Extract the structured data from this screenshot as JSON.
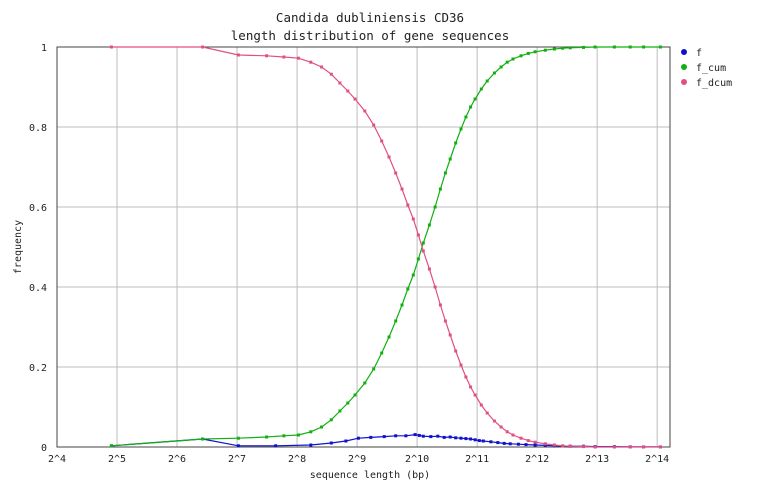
{
  "chart_data": {
    "type": "line",
    "title": "Candida dubliniensis CD36",
    "subtitle": "length distribution of gene sequences",
    "xlabel": "sequence length (bp)",
    "ylabel": "frequency",
    "x_scale": "log2",
    "xlim": [
      16,
      19000
    ],
    "ylim": [
      0,
      1
    ],
    "x_ticks": [
      {
        "value": 16,
        "label": "2^4"
      },
      {
        "value": 32,
        "label": "2^5"
      },
      {
        "value": 64,
        "label": "2^6"
      },
      {
        "value": 128,
        "label": "2^7"
      },
      {
        "value": 256,
        "label": "2^8"
      },
      {
        "value": 512,
        "label": "2^9"
      },
      {
        "value": 1024,
        "label": "2^10"
      },
      {
        "value": 2048,
        "label": "2^11"
      },
      {
        "value": 4096,
        "label": "2^12"
      },
      {
        "value": 8192,
        "label": "2^13"
      },
      {
        "value": 16384,
        "label": "2^14"
      }
    ],
    "y_ticks": [
      {
        "value": 0,
        "label": "0"
      },
      {
        "value": 0.2,
        "label": "0.2"
      },
      {
        "value": 0.4,
        "label": "0.4"
      },
      {
        "value": 0.6,
        "label": "0.6"
      },
      {
        "value": 0.8,
        "label": "0.8"
      },
      {
        "value": 1,
        "label": "1"
      }
    ],
    "grid": true,
    "legend_position": "right",
    "series": [
      {
        "name": "f",
        "color": "#1010d0",
        "x": [
          30,
          86,
          130,
          200,
          300,
          380,
          450,
          520,
          600,
          700,
          800,
          900,
          1000,
          1050,
          1100,
          1200,
          1300,
          1400,
          1500,
          1600,
          1700,
          1800,
          1900,
          2000,
          2100,
          2200,
          2400,
          2600,
          2800,
          3000,
          3300,
          3600,
          4000,
          4500,
          5000,
          6000,
          7000,
          8000,
          10000,
          12000,
          14000,
          17000
        ],
        "values": [
          0.003,
          0.02,
          0.003,
          0.003,
          0.005,
          0.01,
          0.015,
          0.022,
          0.024,
          0.026,
          0.028,
          0.028,
          0.031,
          0.029,
          0.027,
          0.026,
          0.027,
          0.024,
          0.025,
          0.023,
          0.022,
          0.021,
          0.02,
          0.018,
          0.016,
          0.015,
          0.013,
          0.011,
          0.009,
          0.008,
          0.007,
          0.006,
          0.005,
          0.004,
          0.003,
          0.002,
          0.002,
          0.001,
          0.001,
          0.0005,
          0.0003,
          0.0002
        ]
      },
      {
        "name": "f_cum",
        "color": "#10b010",
        "x": [
          30,
          86,
          130,
          180,
          220,
          260,
          300,
          340,
          380,
          420,
          460,
          500,
          560,
          620,
          680,
          740,
          800,
          860,
          920,
          980,
          1040,
          1100,
          1180,
          1260,
          1340,
          1420,
          1500,
          1600,
          1700,
          1800,
          1900,
          2000,
          2150,
          2300,
          2500,
          2700,
          2900,
          3100,
          3400,
          3700,
          4000,
          4500,
          5000,
          5500,
          6000,
          7000,
          8000,
          10000,
          12000,
          14000,
          17000
        ],
        "values": [
          0.003,
          0.02,
          0.022,
          0.025,
          0.028,
          0.03,
          0.038,
          0.05,
          0.068,
          0.09,
          0.11,
          0.13,
          0.16,
          0.195,
          0.235,
          0.275,
          0.315,
          0.355,
          0.395,
          0.43,
          0.47,
          0.51,
          0.555,
          0.6,
          0.645,
          0.685,
          0.72,
          0.76,
          0.795,
          0.825,
          0.85,
          0.87,
          0.895,
          0.915,
          0.935,
          0.95,
          0.962,
          0.97,
          0.978,
          0.984,
          0.988,
          0.992,
          0.995,
          0.997,
          0.998,
          0.999,
          1.0,
          1.0,
          1.0,
          1.0,
          1.0
        ]
      },
      {
        "name": "f_dcum",
        "color": "#e05080",
        "x": [
          30,
          86,
          130,
          180,
          220,
          260,
          300,
          340,
          380,
          420,
          460,
          500,
          560,
          620,
          680,
          740,
          800,
          860,
          920,
          980,
          1040,
          1100,
          1180,
          1260,
          1340,
          1420,
          1500,
          1600,
          1700,
          1800,
          1900,
          2000,
          2150,
          2300,
          2500,
          2700,
          2900,
          3100,
          3400,
          3700,
          4000,
          4500,
          5000,
          5500,
          6000,
          7000,
          8000,
          10000,
          12000,
          14000,
          17000
        ],
        "values": [
          1.0,
          1.0,
          0.98,
          0.978,
          0.975,
          0.972,
          0.962,
          0.95,
          0.932,
          0.91,
          0.89,
          0.87,
          0.84,
          0.805,
          0.765,
          0.725,
          0.685,
          0.645,
          0.605,
          0.57,
          0.53,
          0.49,
          0.445,
          0.4,
          0.355,
          0.315,
          0.28,
          0.24,
          0.205,
          0.175,
          0.15,
          0.13,
          0.105,
          0.085,
          0.065,
          0.05,
          0.038,
          0.03,
          0.022,
          0.016,
          0.012,
          0.008,
          0.005,
          0.003,
          0.002,
          0.001,
          0.0,
          0.0,
          0.0,
          0.0,
          0.0
        ]
      }
    ]
  }
}
